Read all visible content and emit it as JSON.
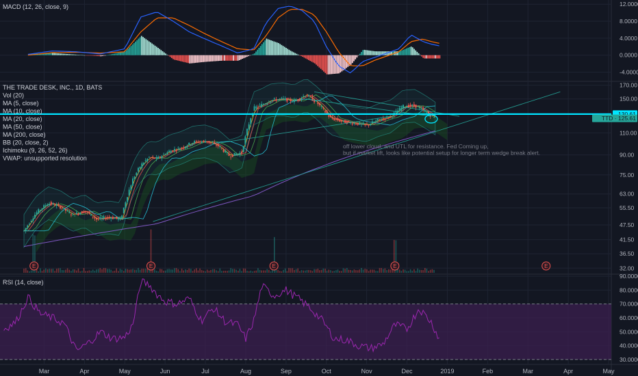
{
  "colors": {
    "background": "#131722",
    "grid": "#1f2433",
    "text": "#d1d4dc",
    "axis_text": "#b2b5be",
    "price_up": "#26a69a",
    "price_down": "#ef5350",
    "macd_line": "#2962ff",
    "signal_line": "#ff6d00",
    "hist_pos": "#a6e3d7",
    "hist_pos_strong": "#26a69a",
    "hist_neg": "#ffcdd2",
    "hist_neg_strong": "#ef5350",
    "rsi_line": "#9c27b0",
    "rsi_fill": "#3b1f4f",
    "horizontal_line": "#00e5ff",
    "ma200": "#7e57c2",
    "earnings_marker": "#ef5350",
    "note_text": "#787b86"
  },
  "x_axis": {
    "labels": [
      {
        "label": "Mar",
        "month": 2
      },
      {
        "label": "Apr",
        "month": 3
      },
      {
        "label": "May",
        "month": 4
      },
      {
        "label": "Jun",
        "month": 5
      },
      {
        "label": "Jul",
        "month": 6
      },
      {
        "label": "Aug",
        "month": 7
      },
      {
        "label": "Sep",
        "month": 8
      },
      {
        "label": "Oct",
        "month": 9
      },
      {
        "label": "Nov",
        "month": 10
      },
      {
        "label": "Dec",
        "month": 11
      },
      {
        "label": "2019",
        "month": 12
      },
      {
        "label": "Feb",
        "month": 13
      },
      {
        "label": "Mar",
        "month": 14
      },
      {
        "label": "Apr",
        "month": 15
      },
      {
        "label": "May",
        "month": 16
      }
    ]
  },
  "chart_data": [
    {
      "type": "line",
      "pane": "macd",
      "legend": "MACD (12, 26, close, 9)",
      "y_ticks": [
        "12.0000",
        "8.0000",
        "4.0000",
        "0.0000",
        "-4.0000"
      ],
      "y_tick_values": [
        12,
        8,
        4,
        0,
        -4
      ],
      "ylim": [
        -6,
        13
      ],
      "series": [
        {
          "role": "macd",
          "x": [
            1.6,
            2.2,
            2.8,
            3.4,
            4.0,
            4.4,
            4.8,
            5.2,
            5.6,
            6.0,
            6.4,
            6.8,
            7.2,
            7.5,
            7.8,
            8.1,
            8.4,
            8.7,
            9.0,
            9.3,
            9.6,
            9.9,
            10.2,
            10.5,
            10.8,
            11.1,
            11.4,
            11.6,
            11.8
          ],
          "y": [
            0.2,
            1.0,
            0.8,
            0.3,
            1.5,
            9.0,
            10.2,
            8.0,
            5.5,
            3.8,
            2.2,
            0.5,
            1.5,
            7.5,
            11.0,
            11.6,
            10.5,
            8.0,
            2.0,
            -2.5,
            -4.2,
            -1.5,
            -0.5,
            0.5,
            1.5,
            4.8,
            3.2,
            2.6,
            2.2
          ]
        },
        {
          "role": "signal",
          "x": [
            1.6,
            2.2,
            2.8,
            3.4,
            4.0,
            4.4,
            4.8,
            5.2,
            5.6,
            6.0,
            6.4,
            6.8,
            7.2,
            7.5,
            7.8,
            8.1,
            8.4,
            8.7,
            9.0,
            9.3,
            9.6,
            9.9,
            10.2,
            10.5,
            10.8,
            11.1,
            11.4,
            11.6,
            11.8
          ],
          "y": [
            0.0,
            0.6,
            0.7,
            0.5,
            0.8,
            5.5,
            8.8,
            8.8,
            7.0,
            5.0,
            3.2,
            1.5,
            1.2,
            4.5,
            8.8,
            10.8,
            10.8,
            9.5,
            5.5,
            0.8,
            -2.5,
            -2.5,
            -1.2,
            -0.2,
            0.8,
            3.2,
            3.8,
            3.2,
            2.8
          ]
        }
      ]
    },
    {
      "type": "candlestick",
      "pane": "price",
      "legend": [
        "THE TRADE DESK, INC., 1D, BATS",
        "Vol (20)",
        "MA (5, close)",
        "MA (10, close)",
        "MA (20, close)",
        "MA (50, close)",
        "MA (200, close)",
        "BB (20, close, 2)",
        "Ichimoku (9, 26, 52, 26)",
        "VWAP: unsupported resolution"
      ],
      "y_ticks": [
        "170.00",
        "150.00",
        "130.00",
        "110.00",
        "90.00",
        "75.00",
        "63.00",
        "55.50",
        "47.50",
        "41.50",
        "36.50",
        "32.00"
      ],
      "y_tick_values": [
        170,
        150,
        130,
        110,
        90,
        75,
        63,
        55.5,
        47.5,
        41.5,
        36.5,
        32
      ],
      "scale": "log",
      "ylim": [
        30.5,
        175
      ],
      "price_labels": [
        {
          "text": "130.61",
          "value": 130.61
        },
        {
          "text": "TTD · 125.61",
          "value": 125.61
        }
      ],
      "horizontal_line": 130.61,
      "close_series": {
        "x": [
          1.5,
          1.8,
          2.1,
          2.4,
          2.7,
          3.0,
          3.3,
          3.6,
          3.9,
          4.2,
          4.4,
          4.6,
          4.8,
          5.1,
          5.4,
          5.7,
          6.0,
          6.3,
          6.6,
          6.9,
          7.2,
          7.4,
          7.6,
          7.9,
          8.2,
          8.5,
          8.8,
          9.1,
          9.4,
          9.7,
          10.0,
          10.3,
          10.6,
          10.9,
          11.2,
          11.5,
          11.7
        ],
        "y": [
          45,
          53,
          58,
          56,
          52,
          54,
          50,
          51,
          50,
          72,
          82,
          88,
          87,
          93,
          96,
          101,
          102,
          98,
          89,
          92,
          138,
          142,
          148,
          150,
          147,
          156,
          143,
          126,
          122,
          120,
          118,
          124,
          128,
          140,
          141,
          132,
          125.6
        ]
      },
      "earnings_markers": [
        {
          "label": "E",
          "month": 1.75
        },
        {
          "label": "E",
          "month": 4.65
        },
        {
          "label": "E",
          "month": 7.7
        },
        {
          "label": "E",
          "month": 10.7
        },
        {
          "label": "E",
          "month": 14.45
        }
      ],
      "annotation": [
        "off lower cloud, and UTL for resistance.  Fed Coming up,",
        "but if market lift, looks like potential setup for longer term wedge break alert."
      ]
    },
    {
      "type": "line",
      "pane": "rsi",
      "legend": "RSI (14, close)",
      "y_ticks": [
        "90.0000",
        "80.0000",
        "70.0000",
        "60.0000",
        "50.0000",
        "40.0000",
        "30.0000"
      ],
      "y_tick_values": [
        90,
        80,
        70,
        60,
        50,
        40,
        30
      ],
      "ylim": [
        27,
        91
      ],
      "bands": [
        70,
        30
      ],
      "series": [
        {
          "role": "rsi",
          "x": [
            1.0,
            1.3,
            1.6,
            1.9,
            2.2,
            2.5,
            2.8,
            3.1,
            3.4,
            3.7,
            4.0,
            4.2,
            4.4,
            4.6,
            4.8,
            5.0,
            5.3,
            5.6,
            5.9,
            6.2,
            6.5,
            6.8,
            7.0,
            7.2,
            7.4,
            7.7,
            8.0,
            8.3,
            8.6,
            8.9,
            9.2,
            9.5,
            9.8,
            10.1,
            10.4,
            10.7,
            11.0,
            11.3,
            11.6,
            11.8
          ],
          "y": [
            52,
            57,
            75,
            63,
            60,
            56,
            36,
            42,
            50,
            45,
            46,
            55,
            86,
            84,
            77,
            72,
            70,
            74,
            58,
            67,
            57,
            55,
            45,
            58,
            83,
            76,
            80,
            74,
            67,
            58,
            45,
            44,
            40,
            38,
            41,
            55,
            52,
            67,
            57,
            45
          ]
        }
      ]
    }
  ]
}
